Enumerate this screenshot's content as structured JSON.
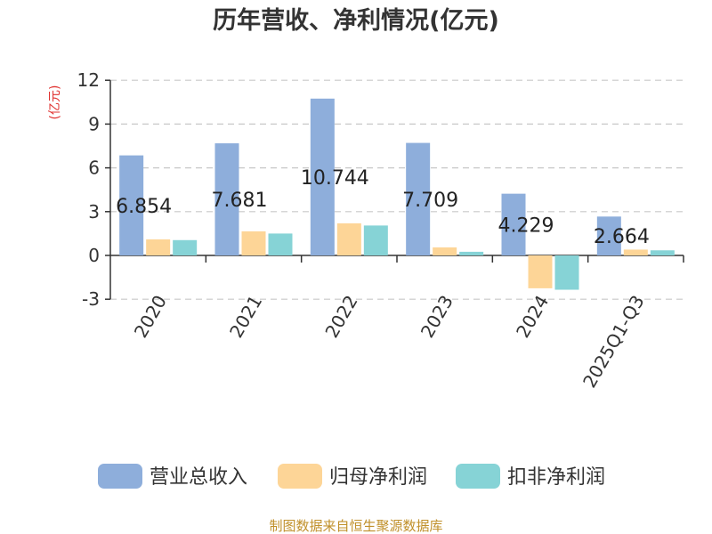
{
  "chart_data": {
    "type": "bar",
    "title": "历年营收、净利情况(亿元)",
    "ylabel": "(亿元)",
    "xlabel": "",
    "categories": [
      "2020",
      "2021",
      "2022",
      "2023",
      "2024",
      "2025Q1-Q3"
    ],
    "ylim": [
      -3,
      12
    ],
    "yticks": [
      -3,
      0,
      3,
      6,
      9,
      12
    ],
    "grid": true,
    "legend_position": "bottom",
    "series": [
      {
        "name": "营业总收入",
        "color": "#8eaedb",
        "values": [
          6.854,
          7.681,
          10.744,
          7.709,
          4.229,
          2.664
        ],
        "labels": [
          "6.854",
          "7.681",
          "10.744",
          "7.709",
          "4.229",
          "2.664"
        ]
      },
      {
        "name": "归母净利润",
        "color": "#fdd597",
        "values": [
          1.1,
          1.65,
          2.2,
          0.55,
          -2.25,
          0.4
        ]
      },
      {
        "name": "扣非净利润",
        "color": "#86d3d6",
        "values": [
          1.05,
          1.5,
          2.05,
          0.25,
          -2.35,
          0.35
        ]
      }
    ],
    "source": "制图数据来自恒生聚源数据库"
  }
}
